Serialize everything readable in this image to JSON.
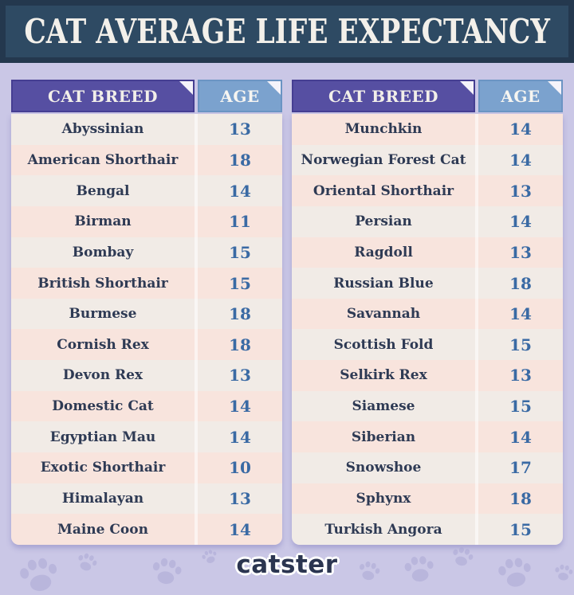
{
  "title": "CAT AVERAGE LIFE EXPECTANCY",
  "tables": [
    {
      "breed_header": "CAT BREED",
      "age_header": "AGE",
      "rows": [
        {
          "breed": "Abyssinian",
          "age": "13"
        },
        {
          "breed": "American Shorthair",
          "age": "18"
        },
        {
          "breed": "Bengal",
          "age": "14"
        },
        {
          "breed": "Birman",
          "age": "11"
        },
        {
          "breed": "Bombay",
          "age": "15"
        },
        {
          "breed": "British Shorthair",
          "age": "15"
        },
        {
          "breed": "Burmese",
          "age": "18"
        },
        {
          "breed": "Cornish Rex",
          "age": "18"
        },
        {
          "breed": "Devon Rex",
          "age": "13"
        },
        {
          "breed": "Domestic Cat",
          "age": "14"
        },
        {
          "breed": "Egyptian Mau",
          "age": "14"
        },
        {
          "breed": "Exotic Shorthair",
          "age": "10"
        },
        {
          "breed": "Himalayan",
          "age": "13"
        },
        {
          "breed": "Maine Coon",
          "age": "14"
        }
      ]
    },
    {
      "breed_header": "CAT BREED",
      "age_header": "AGE",
      "rows": [
        {
          "breed": "Munchkin",
          "age": "14"
        },
        {
          "breed": "Norwegian Forest Cat",
          "age": "14"
        },
        {
          "breed": "Oriental Shorthair",
          "age": "13"
        },
        {
          "breed": "Persian",
          "age": "14"
        },
        {
          "breed": "Ragdoll",
          "age": "13"
        },
        {
          "breed": "Russian Blue",
          "age": "18"
        },
        {
          "breed": "Savannah",
          "age": "14"
        },
        {
          "breed": "Scottish Fold",
          "age": "15"
        },
        {
          "breed": "Selkirk Rex",
          "age": "13"
        },
        {
          "breed": "Siamese",
          "age": "15"
        },
        {
          "breed": "Siberian",
          "age": "14"
        },
        {
          "breed": "Snowshoe",
          "age": "17"
        },
        {
          "breed": "Sphynx",
          "age": "18"
        },
        {
          "breed": "Turkish Angora",
          "age": "15"
        }
      ]
    }
  ],
  "footer": {
    "logo": "catster"
  },
  "colors": {
    "page_background": "#cac7e6",
    "title_bar": "#2e4a63",
    "title_bar_border": "#24384e",
    "breed_header": "#564fa2",
    "age_header": "#7ba2ce",
    "row_cream": "#f1ebe6",
    "row_pink": "#f8e4dd",
    "breed_text": "#2e3a54",
    "age_text": "#3a6aa4",
    "logo_text": "#2b3550",
    "paw_print": "#aaa6d4"
  },
  "chart_data": {
    "type": "table",
    "title": "CAT AVERAGE LIFE EXPECTANCY",
    "columns": [
      "CAT BREED",
      "AGE"
    ],
    "rows": [
      [
        "Abyssinian",
        13
      ],
      [
        "American Shorthair",
        18
      ],
      [
        "Bengal",
        14
      ],
      [
        "Birman",
        11
      ],
      [
        "Bombay",
        15
      ],
      [
        "British Shorthair",
        15
      ],
      [
        "Burmese",
        18
      ],
      [
        "Cornish Rex",
        18
      ],
      [
        "Devon Rex",
        13
      ],
      [
        "Domestic Cat",
        14
      ],
      [
        "Egyptian Mau",
        14
      ],
      [
        "Exotic Shorthair",
        10
      ],
      [
        "Himalayan",
        13
      ],
      [
        "Maine Coon",
        14
      ],
      [
        "Munchkin",
        14
      ],
      [
        "Norwegian Forest Cat",
        14
      ],
      [
        "Oriental Shorthair",
        13
      ],
      [
        "Persian",
        14
      ],
      [
        "Ragdoll",
        13
      ],
      [
        "Russian Blue",
        18
      ],
      [
        "Savannah",
        14
      ],
      [
        "Scottish Fold",
        15
      ],
      [
        "Selkirk Rex",
        13
      ],
      [
        "Siamese",
        15
      ],
      [
        "Siberian",
        14
      ],
      [
        "Snowshoe",
        17
      ],
      [
        "Sphynx",
        18
      ],
      [
        "Turkish Angora",
        15
      ]
    ],
    "layout": "two side-by-side tables of 14 rows each"
  }
}
